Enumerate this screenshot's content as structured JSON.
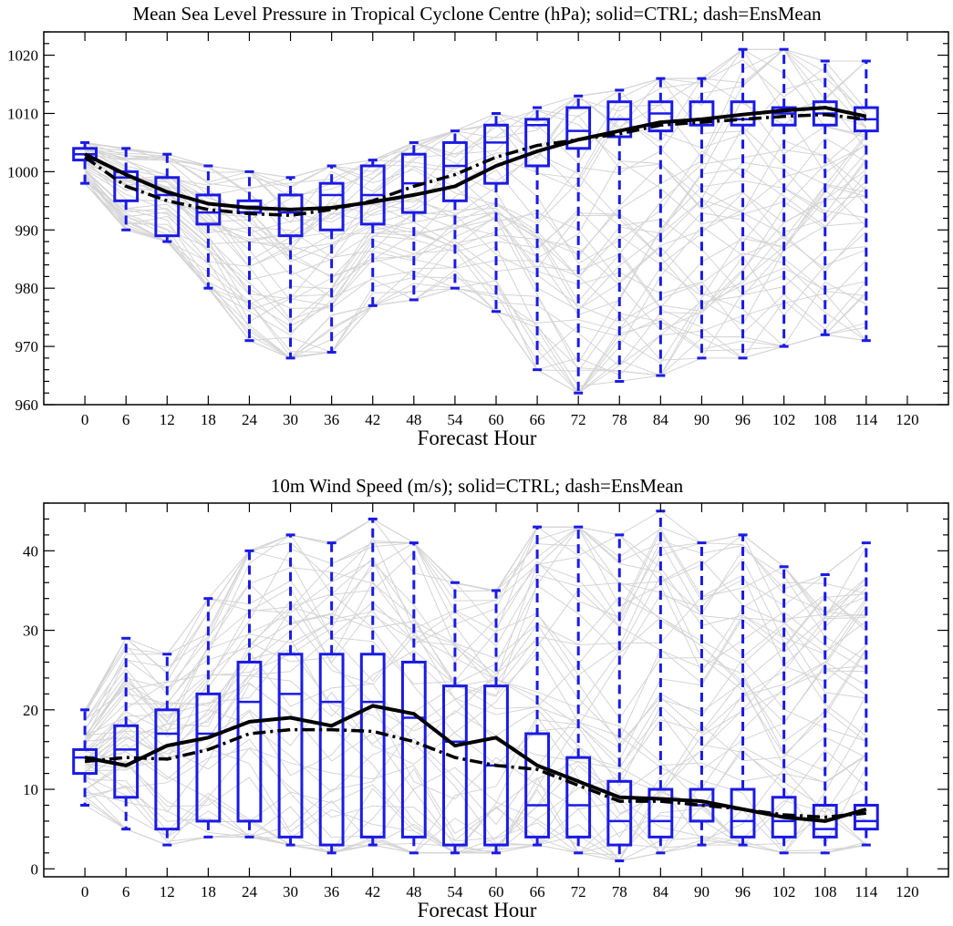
{
  "chart_data": [
    {
      "type": "box",
      "title": "Mean Sea Level Pressure in Tropical Cyclone Centre (hPa); solid=CTRL; dash=EnsMean",
      "xlabel": "Forecast Hour",
      "ylabel": "",
      "x_ticks": [
        0,
        6,
        12,
        18,
        24,
        30,
        36,
        42,
        48,
        54,
        60,
        66,
        72,
        78,
        84,
        90,
        96,
        102,
        108,
        114,
        120
      ],
      "xlim": [
        -6,
        126
      ],
      "ylim": [
        960,
        1024
      ],
      "y_ticks": [
        960,
        970,
        980,
        990,
        1000,
        1010,
        1020
      ],
      "y_minor_step": 2,
      "colors": {
        "box": "#1a1ae6",
        "lines": "#000000",
        "members": "#d4d4d4"
      },
      "grid": false,
      "boxes": [
        {
          "x": 0,
          "whisker_low": 998,
          "q1": 1002,
          "median": 1003,
          "q3": 1004,
          "whisker_high": 1005
        },
        {
          "x": 6,
          "whisker_low": 990,
          "q1": 995,
          "median": 999,
          "q3": 1000,
          "whisker_high": 1004
        },
        {
          "x": 12,
          "whisker_low": 988,
          "q1": 989,
          "median": 996,
          "q3": 999,
          "whisker_high": 1003
        },
        {
          "x": 18,
          "whisker_low": 980,
          "q1": 991,
          "median": 993,
          "q3": 996,
          "whisker_high": 1001
        },
        {
          "x": 24,
          "whisker_low": 971,
          "q1": 993,
          "median": 994,
          "q3": 995,
          "whisker_high": 1000
        },
        {
          "x": 30,
          "whisker_low": 968,
          "q1": 989,
          "median": 993,
          "q3": 996,
          "whisker_high": 999
        },
        {
          "x": 36,
          "whisker_low": 969,
          "q1": 990,
          "median": 996,
          "q3": 998,
          "whisker_high": 1001
        },
        {
          "x": 42,
          "whisker_low": 977,
          "q1": 991,
          "median": 996,
          "q3": 1001,
          "whisker_high": 1002
        },
        {
          "x": 48,
          "whisker_low": 978,
          "q1": 993,
          "median": 998,
          "q3": 1003,
          "whisker_high": 1005
        },
        {
          "x": 54,
          "whisker_low": 980,
          "q1": 995,
          "median": 1001,
          "q3": 1005,
          "whisker_high": 1007
        },
        {
          "x": 60,
          "whisker_low": 976,
          "q1": 998,
          "median": 1005,
          "q3": 1008,
          "whisker_high": 1010
        },
        {
          "x": 66,
          "whisker_low": 966,
          "q1": 1001,
          "median": 1008,
          "q3": 1009,
          "whisker_high": 1011
        },
        {
          "x": 72,
          "whisker_low": 962,
          "q1": 1004,
          "median": 1007,
          "q3": 1011,
          "whisker_high": 1013
        },
        {
          "x": 78,
          "whisker_low": 964,
          "q1": 1006,
          "median": 1009,
          "q3": 1012,
          "whisker_high": 1014
        },
        {
          "x": 84,
          "whisker_low": 965,
          "q1": 1007,
          "median": 1010,
          "q3": 1012,
          "whisker_high": 1016
        },
        {
          "x": 90,
          "whisker_low": 968,
          "q1": 1008,
          "median": 1009,
          "q3": 1012,
          "whisker_high": 1016
        },
        {
          "x": 96,
          "whisker_low": 968,
          "q1": 1008,
          "median": 1009,
          "q3": 1012,
          "whisker_high": 1021
        },
        {
          "x": 102,
          "whisker_low": 970,
          "q1": 1008,
          "median": 1010,
          "q3": 1011,
          "whisker_high": 1021
        },
        {
          "x": 108,
          "whisker_low": 972,
          "q1": 1008,
          "median": 1010,
          "q3": 1012,
          "whisker_high": 1019
        },
        {
          "x": 114,
          "whisker_low": 971,
          "q1": 1007,
          "median": 1009,
          "q3": 1011,
          "whisker_high": 1019
        }
      ],
      "ctrl": [
        1003,
        999.5,
        996.5,
        994.5,
        993.8,
        993.5,
        993.8,
        994.8,
        996.0,
        997.5,
        1001.0,
        1003.5,
        1005.5,
        1007.0,
        1008.5,
        1009.0,
        1009.8,
        1010.5,
        1011.0,
        1009.5
      ],
      "ensmean": [
        1002.5,
        997.5,
        995.0,
        993.5,
        992.8,
        992.5,
        993.5,
        995.0,
        997.5,
        999.5,
        1002.5,
        1004.5,
        1005.5,
        1006.5,
        1008.0,
        1008.5,
        1009.0,
        1009.5,
        1009.8,
        1009.0
      ]
    },
    {
      "type": "box",
      "title": "10m Wind Speed (m/s); solid=CTRL; dash=EnsMean",
      "xlabel": "Forecast Hour",
      "ylabel": "",
      "x_ticks": [
        0,
        6,
        12,
        18,
        24,
        30,
        36,
        42,
        48,
        54,
        60,
        66,
        72,
        78,
        84,
        90,
        96,
        102,
        108,
        114,
        120
      ],
      "xlim": [
        -6,
        126
      ],
      "ylim": [
        -1,
        46
      ],
      "y_ticks": [
        0,
        10,
        20,
        30,
        40
      ],
      "y_minor_step": 2,
      "colors": {
        "box": "#1a1ae6",
        "lines": "#000000",
        "members": "#d4d4d4"
      },
      "grid": false,
      "boxes": [
        {
          "x": 0,
          "whisker_low": 8,
          "q1": 12,
          "median": 14,
          "q3": 15,
          "whisker_high": 20
        },
        {
          "x": 6,
          "whisker_low": 5,
          "q1": 9,
          "median": 15,
          "q3": 18,
          "whisker_high": 29
        },
        {
          "x": 12,
          "whisker_low": 3,
          "q1": 5,
          "median": 17,
          "q3": 20,
          "whisker_high": 27
        },
        {
          "x": 18,
          "whisker_low": 4,
          "q1": 6,
          "median": 17,
          "q3": 22,
          "whisker_high": 34
        },
        {
          "x": 24,
          "whisker_low": 4,
          "q1": 6,
          "median": 21,
          "q3": 26,
          "whisker_high": 40
        },
        {
          "x": 30,
          "whisker_low": 3,
          "q1": 4,
          "median": 22,
          "q3": 27,
          "whisker_high": 42
        },
        {
          "x": 36,
          "whisker_low": 2,
          "q1": 3,
          "median": 21,
          "q3": 27,
          "whisker_high": 41
        },
        {
          "x": 42,
          "whisker_low": 3,
          "q1": 4,
          "median": 21,
          "q3": 27,
          "whisker_high": 44
        },
        {
          "x": 48,
          "whisker_low": 2,
          "q1": 4,
          "median": 19,
          "q3": 26,
          "whisker_high": 41
        },
        {
          "x": 54,
          "whisker_low": 2,
          "q1": 3,
          "median": 16,
          "q3": 23,
          "whisker_high": 36
        },
        {
          "x": 60,
          "whisker_low": 2,
          "q1": 3,
          "median": 13,
          "q3": 23,
          "whisker_high": 35
        },
        {
          "x": 66,
          "whisker_low": 3,
          "q1": 4,
          "median": 8,
          "q3": 17,
          "whisker_high": 43
        },
        {
          "x": 72,
          "whisker_low": 2,
          "q1": 4,
          "median": 8,
          "q3": 14,
          "whisker_high": 43
        },
        {
          "x": 78,
          "whisker_low": 1,
          "q1": 3,
          "median": 6,
          "q3": 11,
          "whisker_high": 42
        },
        {
          "x": 84,
          "whisker_low": 2,
          "q1": 4,
          "median": 6,
          "q3": 10,
          "whisker_high": 45
        },
        {
          "x": 90,
          "whisker_low": 3,
          "q1": 6,
          "median": 8,
          "q3": 10,
          "whisker_high": 41
        },
        {
          "x": 96,
          "whisker_low": 3,
          "q1": 4,
          "median": 6,
          "q3": 10,
          "whisker_high": 42
        },
        {
          "x": 102,
          "whisker_low": 2,
          "q1": 4,
          "median": 6,
          "q3": 9,
          "whisker_high": 38
        },
        {
          "x": 108,
          "whisker_low": 2,
          "q1": 4,
          "median": 5,
          "q3": 8,
          "whisker_high": 37
        },
        {
          "x": 114,
          "whisker_low": 3,
          "q1": 5,
          "median": 6,
          "q3": 8,
          "whisker_high": 41
        }
      ],
      "ctrl": [
        14.0,
        13.0,
        15.5,
        16.5,
        18.5,
        19.0,
        18.0,
        20.5,
        19.5,
        15.5,
        16.5,
        13.0,
        11.0,
        9.0,
        8.8,
        8.5,
        7.5,
        6.5,
        6.0,
        7.5
      ],
      "ensmean": [
        13.5,
        14.0,
        13.8,
        15.0,
        17.0,
        17.5,
        17.5,
        17.3,
        16.0,
        14.0,
        13.0,
        12.5,
        10.5,
        8.5,
        8.5,
        8.0,
        7.5,
        6.8,
        6.5,
        7.0
      ]
    }
  ]
}
